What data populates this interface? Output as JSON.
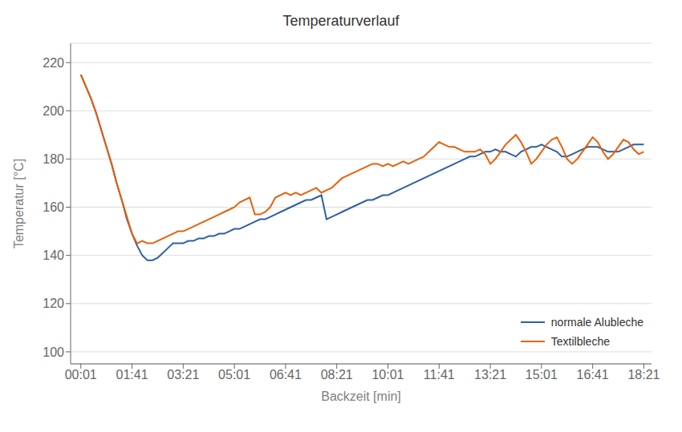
{
  "chart_data": {
    "type": "line",
    "title": "Temperaturverlauf",
    "xlabel": "Backzeit [min]",
    "ylabel": "Temperatur [°C]",
    "x": [
      0,
      10,
      20,
      30,
      40,
      50,
      60,
      70,
      80,
      90,
      100,
      110,
      120,
      130,
      140,
      150,
      160,
      170,
      180,
      190,
      200,
      210,
      220,
      230,
      240,
      250,
      260,
      270,
      280,
      290,
      300,
      310,
      320,
      330,
      340,
      350,
      360,
      370,
      380,
      390,
      400,
      410,
      420,
      430,
      440,
      450,
      460,
      470,
      480,
      490,
      500,
      510,
      520,
      530,
      540,
      550,
      560,
      570,
      580,
      590,
      600,
      610,
      620,
      630,
      640,
      650,
      660,
      670,
      680,
      690,
      700,
      710,
      720,
      730,
      740,
      750,
      760,
      770,
      780,
      790,
      800,
      810,
      820,
      830,
      840,
      850,
      860,
      870,
      880,
      890,
      900,
      910,
      920,
      930,
      940,
      950,
      960,
      970,
      980,
      990,
      1000,
      1010,
      1020,
      1030,
      1040,
      1050,
      1060,
      1070,
      1080,
      1090,
      1100
    ],
    "xlim": [
      -20,
      1115
    ],
    "xticks": [
      {
        "value": 0,
        "label": "00:01"
      },
      {
        "value": 100,
        "label": "01:41"
      },
      {
        "value": 200,
        "label": "03:21"
      },
      {
        "value": 300,
        "label": "05:01"
      },
      {
        "value": 400,
        "label": "06:41"
      },
      {
        "value": 500,
        "label": "08:21"
      },
      {
        "value": 600,
        "label": "10:01"
      },
      {
        "value": 700,
        "label": "11:41"
      },
      {
        "value": 800,
        "label": "13:21"
      },
      {
        "value": 900,
        "label": "15:01"
      },
      {
        "value": 1000,
        "label": "16:41"
      },
      {
        "value": 1100,
        "label": "18:21"
      }
    ],
    "ylim": [
      95,
      228
    ],
    "yticks": [
      100,
      120,
      140,
      160,
      180,
      200,
      220
    ],
    "grid": true,
    "legend": "lower right",
    "series": [
      {
        "name": "normale Alubleche",
        "color": "#2E5FA3",
        "values": [
          215,
          210,
          205,
          199,
          192,
          185,
          178,
          170,
          163,
          155,
          149,
          144,
          140,
          138,
          138,
          139,
          141,
          143,
          145,
          145,
          145,
          146,
          146,
          147,
          147,
          148,
          148,
          149,
          149,
          150,
          151,
          151,
          152,
          153,
          154,
          155,
          155,
          156,
          157,
          158,
          159,
          160,
          161,
          162,
          163,
          163,
          164,
          165,
          155,
          156,
          157,
          158,
          159,
          160,
          161,
          162,
          163,
          163,
          164,
          165,
          165,
          166,
          167,
          168,
          169,
          170,
          171,
          172,
          173,
          174,
          175,
          176,
          177,
          178,
          179,
          180,
          181,
          181,
          182,
          183,
          183,
          184,
          183,
          183,
          182,
          181,
          183,
          184,
          185,
          185,
          186,
          185,
          184,
          183,
          181,
          181,
          182,
          183,
          184,
          185,
          185,
          185,
          184,
          183,
          183,
          183,
          184,
          185,
          186,
          186,
          186
        ]
      },
      {
        "name": "Textilbleche",
        "color": "#E8600A",
        "values": [
          215,
          210,
          205,
          199,
          192,
          185,
          178,
          170,
          163,
          156,
          149,
          145,
          146,
          145,
          145,
          146,
          147,
          148,
          149,
          150,
          150,
          151,
          152,
          153,
          154,
          155,
          156,
          157,
          158,
          159,
          160,
          162,
          163,
          164,
          157,
          157,
          158,
          160,
          164,
          165,
          166,
          165,
          166,
          165,
          166,
          167,
          168,
          166,
          167,
          168,
          170,
          172,
          173,
          174,
          175,
          176,
          177,
          178,
          178,
          177,
          178,
          177,
          178,
          179,
          178,
          179,
          180,
          181,
          183,
          185,
          187,
          186,
          185,
          185,
          184,
          183,
          183,
          183,
          184,
          182,
          178,
          180,
          183,
          186,
          188,
          190,
          187,
          183,
          178,
          180,
          183,
          186,
          188,
          189,
          185,
          180,
          178,
          180,
          183,
          186,
          189,
          187,
          183,
          180,
          182,
          185,
          188,
          187,
          184,
          182,
          183
        ]
      }
    ]
  }
}
